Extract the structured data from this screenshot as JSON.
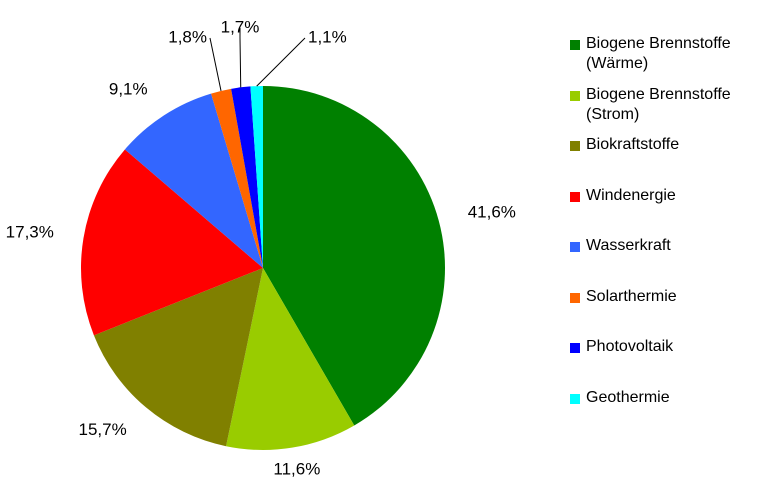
{
  "chart_data": {
    "type": "pie",
    "categories": [
      "Biogene Brennstoffe (Wärme)",
      "Biogene Brennstoffe (Strom)",
      "Biokraftstoffe",
      "Windenergie",
      "Wasserkraft",
      "Solarthermie",
      "Photovoltaik",
      "Geothermie"
    ],
    "values": [
      41.6,
      11.6,
      15.7,
      17.3,
      9.1,
      1.8,
      1.7,
      1.1
    ],
    "value_labels": [
      "41,6%",
      "11,6%",
      "15,7%",
      "17,3%",
      "9,1%",
      "1,8%",
      "1,7%",
      "1,1%"
    ],
    "colors": [
      "#008000",
      "#99cc00",
      "#808000",
      "#ff0000",
      "#3366ff",
      "#ff6600",
      "#0000ff",
      "#00ffff"
    ],
    "legend": "right"
  }
}
